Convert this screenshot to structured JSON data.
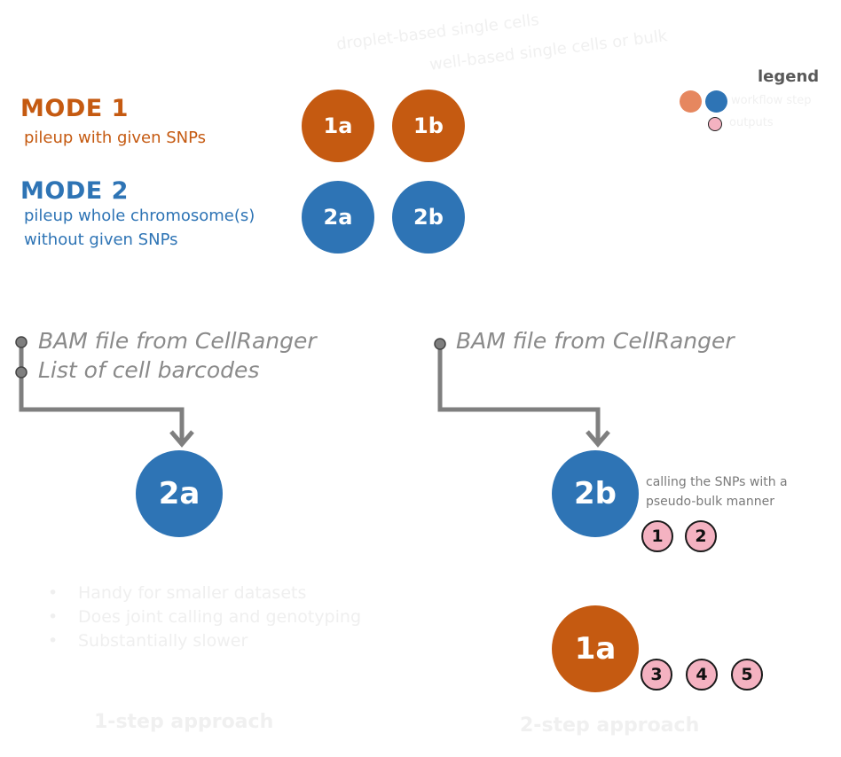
{
  "header": {
    "droplet_label": "droplet-based single cells",
    "well_label": "well-based single cells or bulk"
  },
  "legend": {
    "title": "legend",
    "workflow_label": "workflow step",
    "outputs_label": "outputs"
  },
  "modes": [
    {
      "title": "MODE 1",
      "subtitle_lines": [
        "pileup with given SNPs"
      ],
      "steps": [
        "1a",
        "1b"
      ]
    },
    {
      "title": "MODE 2",
      "subtitle_lines": [
        "pileup whole chromosome(s)",
        "without given SNPs"
      ],
      "steps": [
        "2a",
        "2b"
      ]
    }
  ],
  "left_panel": {
    "inputs": [
      "BAM file from CellRanger",
      "List of cell barcodes"
    ],
    "step": "2a",
    "bullets": [
      "Handy for smaller datasets",
      "Does joint calling and genotyping",
      "Substantially slower"
    ],
    "footer": "1-step approach"
  },
  "right_panel": {
    "inputs": [
      "BAM file from CellRanger"
    ],
    "step1": "2b",
    "step1_note_lines": [
      "calling the SNPs with a",
      "pseudo-bulk manner"
    ],
    "step1_outputs": [
      "1",
      "2"
    ],
    "step2": "1a",
    "step2_outputs": [
      "3",
      "4",
      "5"
    ],
    "footer": "2-step approach"
  },
  "colors": {
    "mode1": "#c55a11",
    "mode2": "#2e74b5",
    "output_fill": "#f4b2c1",
    "connector": "#7f7f7f",
    "input_text": "#8a8a8a"
  }
}
